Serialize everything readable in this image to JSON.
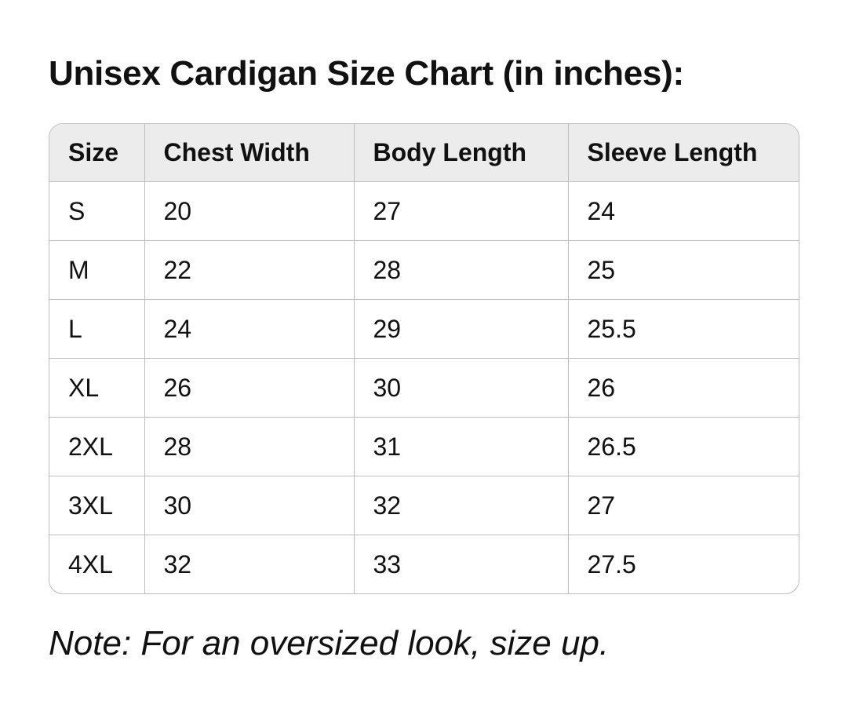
{
  "header": {
    "title": "Unisex Cardigan Size Chart (in inches):"
  },
  "table": {
    "columns": [
      "Size",
      "Chest Width",
      "Body Length",
      "Sleeve Length"
    ],
    "rows": [
      [
        "S",
        "20",
        "27",
        "24"
      ],
      [
        "M",
        "22",
        "28",
        "25"
      ],
      [
        "L",
        "24",
        "29",
        "25.5"
      ],
      [
        "XL",
        "26",
        "30",
        "26"
      ],
      [
        "2XL",
        "28",
        "31",
        "26.5"
      ],
      [
        "3XL",
        "30",
        "32",
        "27"
      ],
      [
        "4XL",
        "32",
        "33",
        "27.5"
      ]
    ]
  },
  "note": "Note: For an oversized look, size up."
}
